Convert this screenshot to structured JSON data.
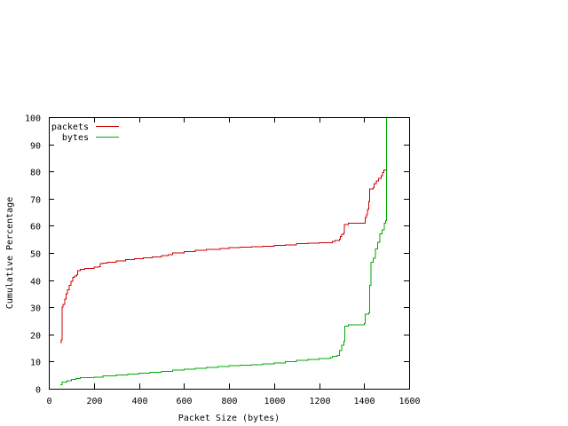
{
  "chart_data": {
    "type": "line",
    "title": "",
    "xlabel": "Packet Size (bytes)",
    "ylabel": "Cumulative Percentage",
    "xlim": [
      0,
      1600
    ],
    "ylim": [
      0,
      100
    ],
    "x_ticks": [
      0,
      200,
      400,
      600,
      800,
      1000,
      1200,
      1400,
      1600
    ],
    "y_ticks": [
      0,
      10,
      20,
      30,
      40,
      50,
      60,
      70,
      80,
      90,
      100
    ],
    "grid": false,
    "legend_position": "top-left",
    "series": [
      {
        "name": "packets",
        "color": "#cc0000",
        "points": [
          [
            52,
            17
          ],
          [
            56,
            18
          ],
          [
            60,
            30
          ],
          [
            64,
            31
          ],
          [
            70,
            33
          ],
          [
            76,
            35
          ],
          [
            82,
            36.5
          ],
          [
            90,
            38
          ],
          [
            98,
            39.5
          ],
          [
            106,
            41
          ],
          [
            114,
            41.5
          ],
          [
            124,
            42
          ],
          [
            128,
            43.5
          ],
          [
            140,
            44
          ],
          [
            160,
            44.3
          ],
          [
            200,
            44.7
          ],
          [
            222,
            45
          ],
          [
            228,
            46
          ],
          [
            240,
            46.3
          ],
          [
            260,
            46.6
          ],
          [
            300,
            47
          ],
          [
            340,
            47.5
          ],
          [
            380,
            47.8
          ],
          [
            420,
            48.2
          ],
          [
            460,
            48.6
          ],
          [
            500,
            49
          ],
          [
            530,
            49.3
          ],
          [
            550,
            50
          ],
          [
            600,
            50.5
          ],
          [
            650,
            51
          ],
          [
            700,
            51.3
          ],
          [
            760,
            51.6
          ],
          [
            800,
            52
          ],
          [
            850,
            52.2
          ],
          [
            900,
            52.3
          ],
          [
            950,
            52.4
          ],
          [
            1000,
            52.7
          ],
          [
            1050,
            53
          ],
          [
            1100,
            53.4
          ],
          [
            1150,
            53.6
          ],
          [
            1200,
            53.7
          ],
          [
            1250,
            53.8
          ],
          [
            1260,
            54.2
          ],
          [
            1270,
            54.6
          ],
          [
            1290,
            55
          ],
          [
            1295,
            56
          ],
          [
            1300,
            56.8
          ],
          [
            1310,
            57.5
          ],
          [
            1312,
            60.5
          ],
          [
            1330,
            61
          ],
          [
            1400,
            61
          ],
          [
            1405,
            63
          ],
          [
            1410,
            64
          ],
          [
            1415,
            66
          ],
          [
            1420,
            69
          ],
          [
            1425,
            73.5
          ],
          [
            1440,
            74
          ],
          [
            1445,
            75.5
          ],
          [
            1455,
            76.5
          ],
          [
            1465,
            77.5
          ],
          [
            1475,
            78.5
          ],
          [
            1482,
            79.5
          ],
          [
            1488,
            80.5
          ],
          [
            1498,
            80.5
          ],
          [
            1500,
            100
          ]
        ]
      },
      {
        "name": "bytes",
        "color": "#00aa00",
        "points": [
          [
            52,
            1.5
          ],
          [
            60,
            2.5
          ],
          [
            80,
            3
          ],
          [
            100,
            3.5
          ],
          [
            120,
            3.8
          ],
          [
            140,
            4.1
          ],
          [
            200,
            4.3
          ],
          [
            240,
            4.7
          ],
          [
            300,
            5.1
          ],
          [
            350,
            5.4
          ],
          [
            400,
            5.7
          ],
          [
            450,
            6
          ],
          [
            500,
            6.3
          ],
          [
            550,
            6.8
          ],
          [
            600,
            7.2
          ],
          [
            650,
            7.5
          ],
          [
            700,
            7.9
          ],
          [
            750,
            8.1
          ],
          [
            800,
            8.5
          ],
          [
            850,
            8.7
          ],
          [
            900,
            8.9
          ],
          [
            950,
            9.2
          ],
          [
            1000,
            9.5
          ],
          [
            1050,
            10
          ],
          [
            1100,
            10.5
          ],
          [
            1150,
            10.8
          ],
          [
            1200,
            11.1
          ],
          [
            1250,
            11.5
          ],
          [
            1260,
            12
          ],
          [
            1280,
            12.3
          ],
          [
            1290,
            14
          ],
          [
            1300,
            16
          ],
          [
            1310,
            17.5
          ],
          [
            1315,
            23
          ],
          [
            1330,
            23.5
          ],
          [
            1400,
            24
          ],
          [
            1405,
            27.5
          ],
          [
            1420,
            28
          ],
          [
            1425,
            38
          ],
          [
            1430,
            46.5
          ],
          [
            1440,
            48
          ],
          [
            1450,
            51.5
          ],
          [
            1460,
            54
          ],
          [
            1470,
            57
          ],
          [
            1480,
            58.5
          ],
          [
            1490,
            61
          ],
          [
            1495,
            62
          ],
          [
            1500,
            100
          ]
        ]
      }
    ]
  }
}
